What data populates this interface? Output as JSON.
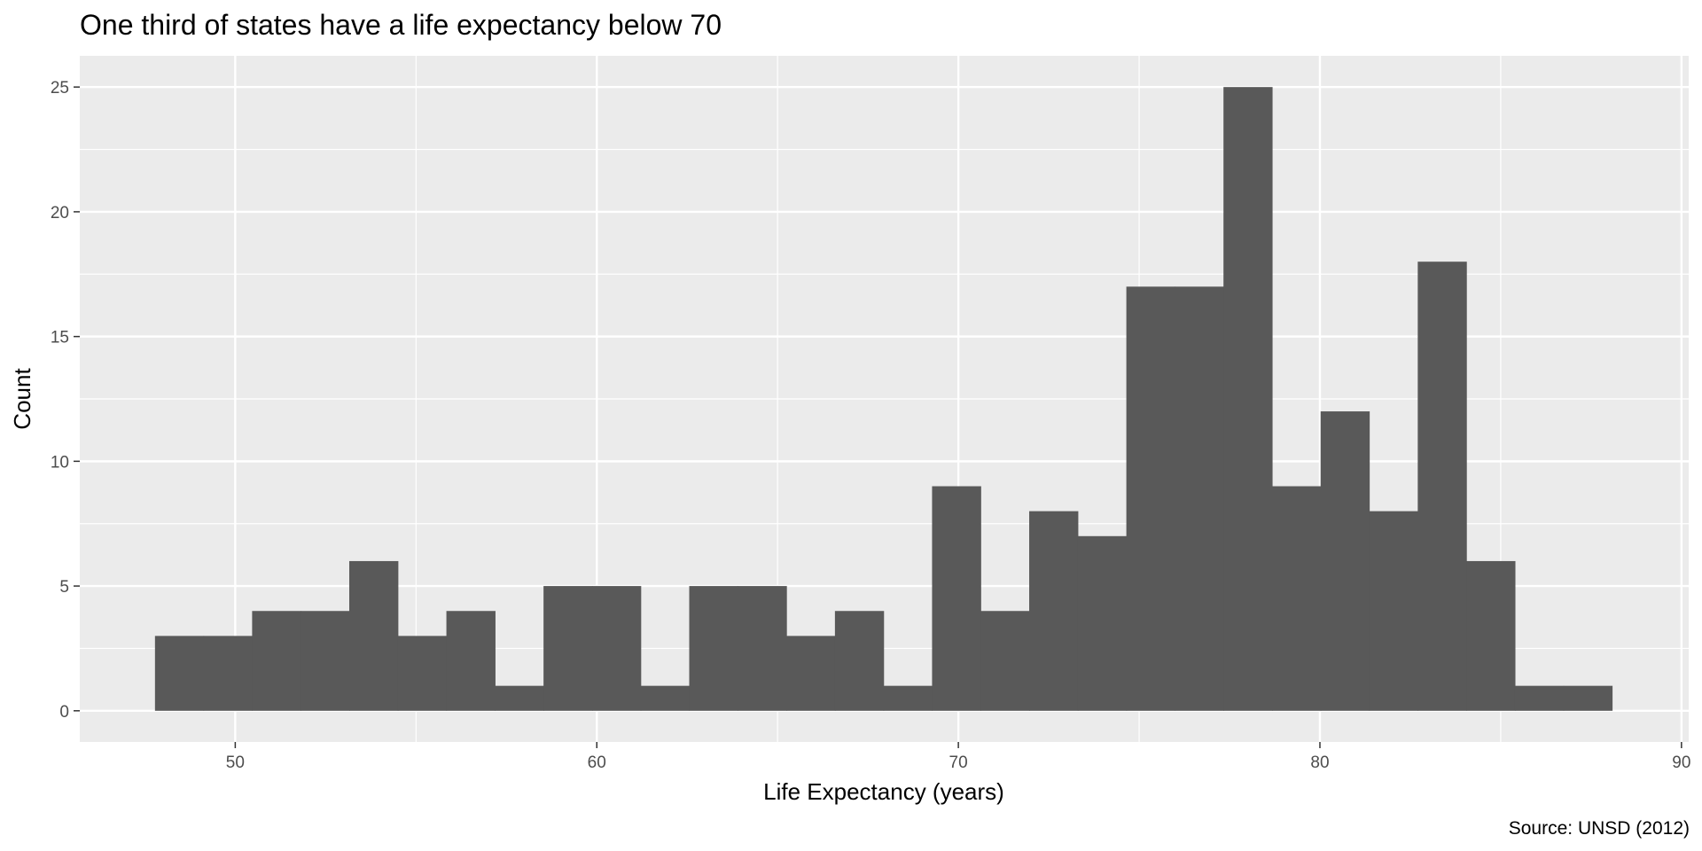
{
  "chart_data": {
    "type": "bar",
    "title": "One third of states have a life expectancy below 70",
    "xlabel": "Life Expectancy (years)",
    "ylabel": "Count",
    "caption": "Source: UNSD (2012)",
    "xlim": [
      45.7,
      90.2
    ],
    "ylim": [
      -1.25,
      26.25
    ],
    "x_ticks": [
      50,
      60,
      70,
      80,
      90
    ],
    "y_ticks": [
      0,
      5,
      10,
      15,
      20,
      25
    ],
    "bin_start": 47.78,
    "bin_width": 1.3433,
    "values": [
      3,
      3,
      4,
      4,
      6,
      3,
      4,
      1,
      5,
      5,
      1,
      5,
      5,
      3,
      4,
      1,
      9,
      4,
      8,
      7,
      17,
      17,
      25,
      9,
      12,
      8,
      18,
      6,
      1,
      1
    ],
    "grid": true,
    "legend": "none",
    "colors": {
      "bar": "#595959",
      "panel": "#ebebeb",
      "grid_major": "#ffffff",
      "tick": "#333333"
    }
  }
}
